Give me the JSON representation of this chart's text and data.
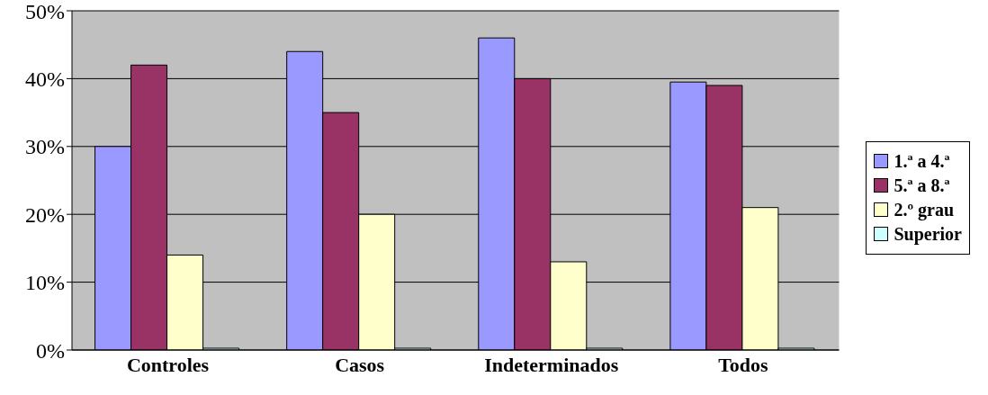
{
  "chart_data": {
    "type": "bar",
    "categories": [
      "Controles",
      "Casos",
      "Indeterminados",
      "Todos"
    ],
    "series": [
      {
        "name": "1.ª a 4.ª",
        "color": "#9999ff",
        "values": [
          30,
          44,
          46,
          39.5
        ]
      },
      {
        "name": "5.ª a 8.ª",
        "color": "#993366",
        "values": [
          42,
          35,
          40,
          39
        ]
      },
      {
        "name": "2.º grau",
        "color": "#ffffcc",
        "values": [
          14,
          20,
          13,
          21
        ]
      },
      {
        "name": "Superior",
        "color": "#ccffff",
        "values": [
          0,
          0,
          0,
          0
        ]
      }
    ],
    "ylim": [
      0,
      50
    ],
    "yticks": [
      {
        "value": 0,
        "label": "0%"
      },
      {
        "value": 10,
        "label": "10%"
      },
      {
        "value": 20,
        "label": "20%"
      },
      {
        "value": 30,
        "label": "30%"
      },
      {
        "value": 40,
        "label": "40%"
      },
      {
        "value": 50,
        "label": "50%"
      }
    ],
    "grid": "y",
    "legend": "right"
  }
}
